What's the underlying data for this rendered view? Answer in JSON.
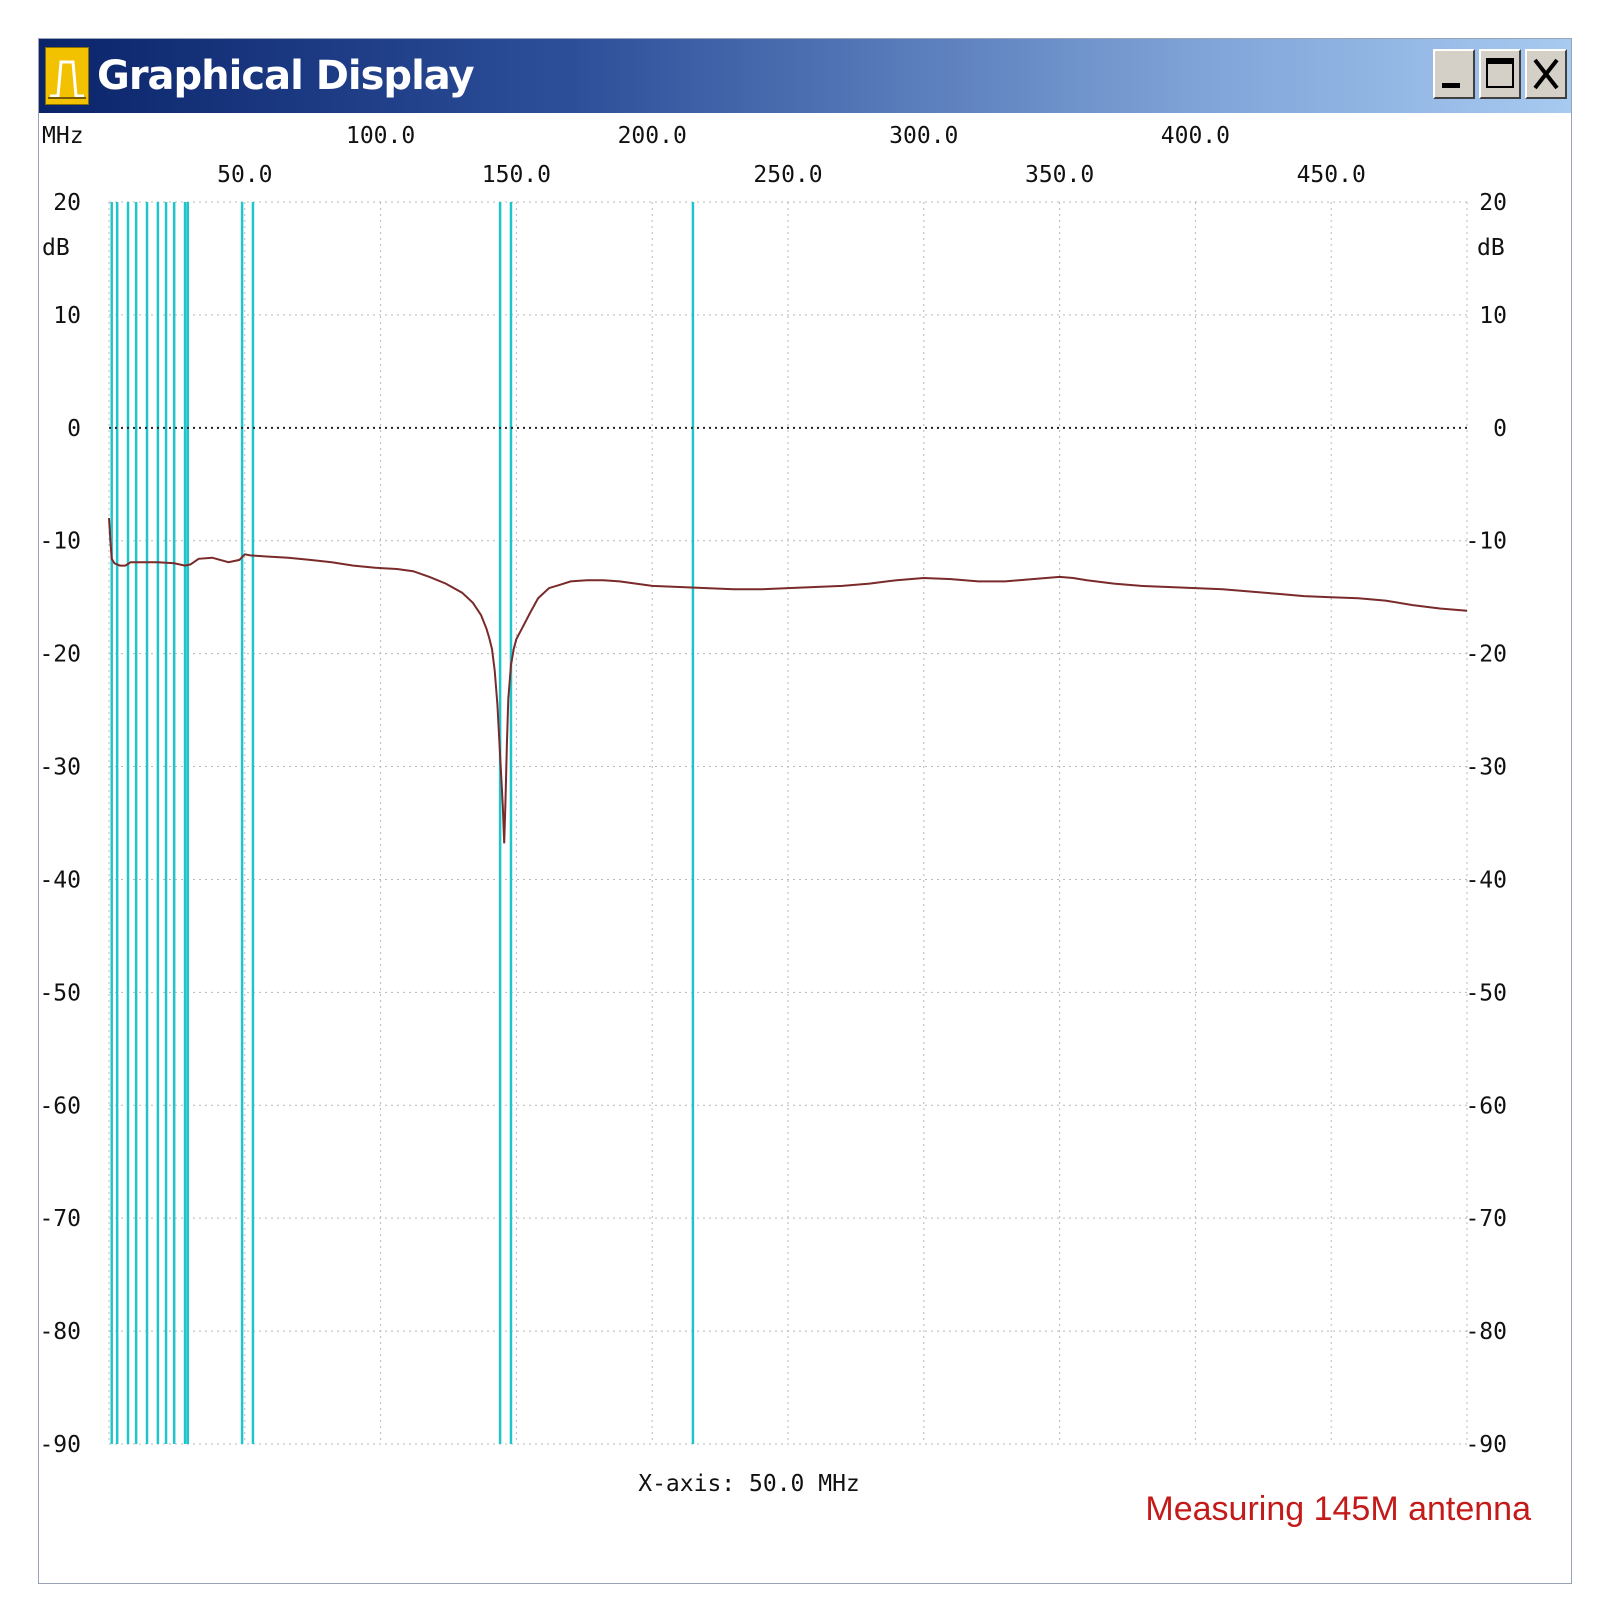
{
  "window": {
    "title": "Graphical Display",
    "icon": "bandpass-graph-icon",
    "controls": {
      "minimize": "minimize-icon",
      "maximize": "maximize-icon",
      "close": "close-icon"
    }
  },
  "caption": "Measuring 145M antenna",
  "colors": {
    "trace": "#7a2a2a",
    "marker": "#1ec6cc",
    "grid": "#b8b8b8",
    "caption": "#c41a1a"
  },
  "chart_data": {
    "type": "line",
    "x_unit_label": "MHz",
    "y_unit_label": "dB",
    "x_axis_info": "X-axis: 50.0 MHz",
    "xlim": [
      0,
      500
    ],
    "ylim": [
      -90,
      20
    ],
    "x_ticks_top_row": [
      {
        "value": 100,
        "label": "100.0"
      },
      {
        "value": 200,
        "label": "200.0"
      },
      {
        "value": 300,
        "label": "300.0"
      },
      {
        "value": 400,
        "label": "400.0"
      }
    ],
    "x_ticks_bottom_row": [
      {
        "value": 50,
        "label": "50.0"
      },
      {
        "value": 150,
        "label": "150.0"
      },
      {
        "value": 250,
        "label": "250.0"
      },
      {
        "value": 350,
        "label": "350.0"
      },
      {
        "value": 450,
        "label": "450.0"
      }
    ],
    "y_ticks": [
      {
        "value": 20,
        "label": "20"
      },
      {
        "value": 10,
        "label": "10"
      },
      {
        "value": 0,
        "label": "0"
      },
      {
        "value": -10,
        "label": "-10"
      },
      {
        "value": -20,
        "label": "-20"
      },
      {
        "value": -30,
        "label": "-30"
      },
      {
        "value": -40,
        "label": "-40"
      },
      {
        "value": -50,
        "label": "-50"
      },
      {
        "value": -60,
        "label": "-60"
      },
      {
        "value": -70,
        "label": "-70"
      },
      {
        "value": -80,
        "label": "-80"
      },
      {
        "value": -90,
        "label": "-90"
      }
    ],
    "grid": true,
    "zero_reference_line": 0,
    "markers_mhz": [
      1,
      3,
      7,
      10,
      14,
      18,
      21,
      24,
      28,
      29,
      49,
      53,
      144,
      148,
      215
    ],
    "series": [
      {
        "x": [
          0,
          0.5,
          1,
          2,
          4,
          6,
          8,
          12,
          18,
          24,
          28,
          30,
          33,
          38,
          44,
          48,
          50,
          52,
          58,
          66,
          74,
          82,
          90,
          98,
          106,
          112,
          118,
          124,
          130,
          134,
          137,
          139,
          140,
          141,
          142,
          143,
          144,
          145,
          145.5,
          146,
          146.5,
          147,
          148,
          149,
          150,
          152,
          155,
          158,
          162,
          166,
          170,
          176,
          182,
          188,
          194,
          200,
          210,
          220,
          230,
          240,
          250,
          260,
          270,
          280,
          290,
          300,
          310,
          320,
          330,
          340,
          350,
          355,
          360,
          370,
          380,
          390,
          400,
          410,
          420,
          430,
          440,
          450,
          460,
          470,
          480,
          490,
          500
        ],
        "y": [
          -8,
          -10,
          -11.6,
          -12,
          -12.2,
          -12.2,
          -11.9,
          -11.9,
          -11.9,
          -12,
          -12.2,
          -12.1,
          -11.6,
          -11.5,
          -11.9,
          -11.7,
          -11.2,
          -11.3,
          -11.4,
          -11.5,
          -11.7,
          -11.9,
          -12.2,
          -12.4,
          -12.5,
          -12.7,
          -13.2,
          -13.8,
          -14.6,
          -15.5,
          -16.6,
          -17.8,
          -18.6,
          -19.6,
          -21.5,
          -24.5,
          -29,
          -33.5,
          -36.8,
          -33,
          -28,
          -24,
          -21,
          -19.6,
          -18.7,
          -17.8,
          -16.4,
          -15.1,
          -14.2,
          -13.9,
          -13.6,
          -13.5,
          -13.5,
          -13.6,
          -13.8,
          -14,
          -14.1,
          -14.2,
          -14.3,
          -14.3,
          -14.2,
          -14.1,
          -14,
          -13.8,
          -13.5,
          -13.3,
          -13.4,
          -13.6,
          -13.6,
          -13.4,
          -13.2,
          -13.3,
          -13.5,
          -13.8,
          -14,
          -14.1,
          -14.2,
          -14.3,
          -14.5,
          -14.7,
          -14.9,
          -15,
          -15.1,
          -15.3,
          -15.7,
          -16,
          -16.2
        ]
      }
    ]
  }
}
